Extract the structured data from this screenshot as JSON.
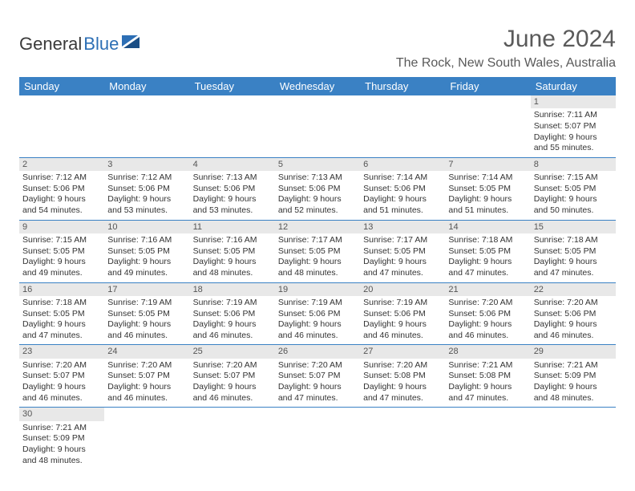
{
  "logo": {
    "part1": "General",
    "part2": "Blue"
  },
  "title": "June 2024",
  "location": "The Rock, New South Wales, Australia",
  "colors": {
    "header_bg": "#3a81c4",
    "header_text": "#ffffff",
    "daybar_bg": "#e8e8e8",
    "row_border": "#3a81c4",
    "title_color": "#5a5a5a",
    "logo_blue": "#2d6fb5"
  },
  "weekdays": [
    "Sunday",
    "Monday",
    "Tuesday",
    "Wednesday",
    "Thursday",
    "Friday",
    "Saturday"
  ],
  "weeks": [
    [
      null,
      null,
      null,
      null,
      null,
      null,
      {
        "n": "1",
        "sunrise": "7:11 AM",
        "sunset": "5:07 PM",
        "dl1": "9 hours",
        "dl2": "and 55 minutes."
      }
    ],
    [
      {
        "n": "2",
        "sunrise": "7:12 AM",
        "sunset": "5:06 PM",
        "dl1": "9 hours",
        "dl2": "and 54 minutes."
      },
      {
        "n": "3",
        "sunrise": "7:12 AM",
        "sunset": "5:06 PM",
        "dl1": "9 hours",
        "dl2": "and 53 minutes."
      },
      {
        "n": "4",
        "sunrise": "7:13 AM",
        "sunset": "5:06 PM",
        "dl1": "9 hours",
        "dl2": "and 53 minutes."
      },
      {
        "n": "5",
        "sunrise": "7:13 AM",
        "sunset": "5:06 PM",
        "dl1": "9 hours",
        "dl2": "and 52 minutes."
      },
      {
        "n": "6",
        "sunrise": "7:14 AM",
        "sunset": "5:06 PM",
        "dl1": "9 hours",
        "dl2": "and 51 minutes."
      },
      {
        "n": "7",
        "sunrise": "7:14 AM",
        "sunset": "5:05 PM",
        "dl1": "9 hours",
        "dl2": "and 51 minutes."
      },
      {
        "n": "8",
        "sunrise": "7:15 AM",
        "sunset": "5:05 PM",
        "dl1": "9 hours",
        "dl2": "and 50 minutes."
      }
    ],
    [
      {
        "n": "9",
        "sunrise": "7:15 AM",
        "sunset": "5:05 PM",
        "dl1": "9 hours",
        "dl2": "and 49 minutes."
      },
      {
        "n": "10",
        "sunrise": "7:16 AM",
        "sunset": "5:05 PM",
        "dl1": "9 hours",
        "dl2": "and 49 minutes."
      },
      {
        "n": "11",
        "sunrise": "7:16 AM",
        "sunset": "5:05 PM",
        "dl1": "9 hours",
        "dl2": "and 48 minutes."
      },
      {
        "n": "12",
        "sunrise": "7:17 AM",
        "sunset": "5:05 PM",
        "dl1": "9 hours",
        "dl2": "and 48 minutes."
      },
      {
        "n": "13",
        "sunrise": "7:17 AM",
        "sunset": "5:05 PM",
        "dl1": "9 hours",
        "dl2": "and 47 minutes."
      },
      {
        "n": "14",
        "sunrise": "7:18 AM",
        "sunset": "5:05 PM",
        "dl1": "9 hours",
        "dl2": "and 47 minutes."
      },
      {
        "n": "15",
        "sunrise": "7:18 AM",
        "sunset": "5:05 PM",
        "dl1": "9 hours",
        "dl2": "and 47 minutes."
      }
    ],
    [
      {
        "n": "16",
        "sunrise": "7:18 AM",
        "sunset": "5:05 PM",
        "dl1": "9 hours",
        "dl2": "and 47 minutes."
      },
      {
        "n": "17",
        "sunrise": "7:19 AM",
        "sunset": "5:05 PM",
        "dl1": "9 hours",
        "dl2": "and 46 minutes."
      },
      {
        "n": "18",
        "sunrise": "7:19 AM",
        "sunset": "5:06 PM",
        "dl1": "9 hours",
        "dl2": "and 46 minutes."
      },
      {
        "n": "19",
        "sunrise": "7:19 AM",
        "sunset": "5:06 PM",
        "dl1": "9 hours",
        "dl2": "and 46 minutes."
      },
      {
        "n": "20",
        "sunrise": "7:19 AM",
        "sunset": "5:06 PM",
        "dl1": "9 hours",
        "dl2": "and 46 minutes."
      },
      {
        "n": "21",
        "sunrise": "7:20 AM",
        "sunset": "5:06 PM",
        "dl1": "9 hours",
        "dl2": "and 46 minutes."
      },
      {
        "n": "22",
        "sunrise": "7:20 AM",
        "sunset": "5:06 PM",
        "dl1": "9 hours",
        "dl2": "and 46 minutes."
      }
    ],
    [
      {
        "n": "23",
        "sunrise": "7:20 AM",
        "sunset": "5:07 PM",
        "dl1": "9 hours",
        "dl2": "and 46 minutes."
      },
      {
        "n": "24",
        "sunrise": "7:20 AM",
        "sunset": "5:07 PM",
        "dl1": "9 hours",
        "dl2": "and 46 minutes."
      },
      {
        "n": "25",
        "sunrise": "7:20 AM",
        "sunset": "5:07 PM",
        "dl1": "9 hours",
        "dl2": "and 46 minutes."
      },
      {
        "n": "26",
        "sunrise": "7:20 AM",
        "sunset": "5:07 PM",
        "dl1": "9 hours",
        "dl2": "and 47 minutes."
      },
      {
        "n": "27",
        "sunrise": "7:20 AM",
        "sunset": "5:08 PM",
        "dl1": "9 hours",
        "dl2": "and 47 minutes."
      },
      {
        "n": "28",
        "sunrise": "7:21 AM",
        "sunset": "5:08 PM",
        "dl1": "9 hours",
        "dl2": "and 47 minutes."
      },
      {
        "n": "29",
        "sunrise": "7:21 AM",
        "sunset": "5:09 PM",
        "dl1": "9 hours",
        "dl2": "and 48 minutes."
      }
    ],
    [
      {
        "n": "30",
        "sunrise": "7:21 AM",
        "sunset": "5:09 PM",
        "dl1": "9 hours",
        "dl2": "and 48 minutes."
      },
      null,
      null,
      null,
      null,
      null,
      null
    ]
  ],
  "labels": {
    "sunrise": "Sunrise:",
    "sunset": "Sunset:",
    "daylight": "Daylight:"
  }
}
